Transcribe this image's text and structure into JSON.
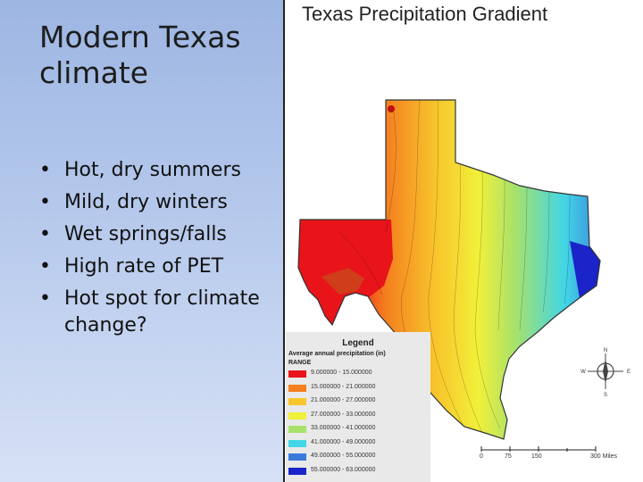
{
  "slide": {
    "title": "Modern Texas climate",
    "bullets": [
      "Hot, dry summers",
      "Mild, dry winters",
      "Wet springs/falls",
      "High rate of PET",
      "Hot spot for climate change?"
    ]
  },
  "map": {
    "title": "Texas Precipitation Gradient",
    "legend": {
      "title": "Legend",
      "subtitle": "Average annual precipitation (in)",
      "range_label": "RANGE",
      "items": [
        {
          "label": "9.000000 - 15.000000",
          "color": "#e8141a"
        },
        {
          "label": "15.000000 - 21.000000",
          "color": "#f47f1f"
        },
        {
          "label": "21.000000 - 27.000000",
          "color": "#f8c52c"
        },
        {
          "label": "27.000000 - 33.000000",
          "color": "#f1f03a"
        },
        {
          "label": "33.000000 - 41.000000",
          "color": "#a8e26a"
        },
        {
          "label": "41.000000 - 49.000000",
          "color": "#42d6e6"
        },
        {
          "label": "49.000000 - 55.000000",
          "color": "#3a7bdc"
        },
        {
          "label": "55.000000 - 63.000000",
          "color": "#1a24c8"
        }
      ]
    },
    "compass": {
      "n": "N",
      "s": "S",
      "e": "E",
      "w": "W"
    },
    "scale": {
      "labels": [
        "0",
        "75",
        "150",
        "300 Miles"
      ]
    }
  }
}
